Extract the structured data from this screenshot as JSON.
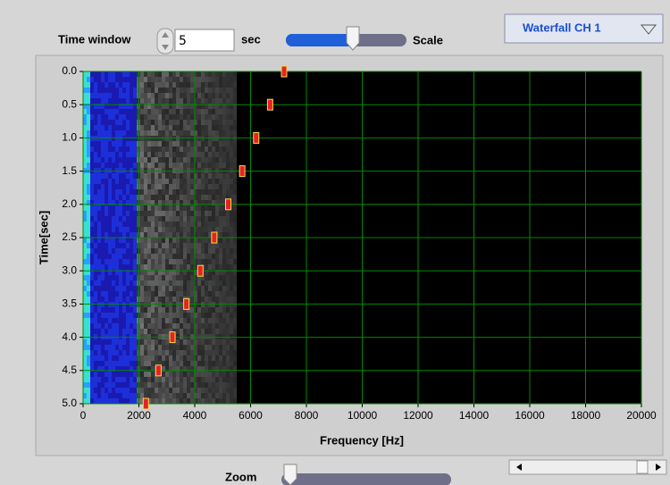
{
  "controls": {
    "time_window_label": "Time window",
    "time_window_value": "5",
    "time_window_unit": "sec",
    "scale_label": "Scale",
    "view_select": "Waterfall CH 1",
    "zoom_label": "Zoom"
  },
  "chart_data": {
    "type": "waterfall",
    "x_label": "Frequency [Hz]",
    "y_label": "Time[sec]",
    "xlim": [
      0,
      20000
    ],
    "xticks": [
      0,
      2000,
      4000,
      6000,
      8000,
      10000,
      12000,
      14000,
      16000,
      18000,
      20000
    ],
    "ylim": [
      0,
      5
    ],
    "yticks": [
      {
        "value": 0,
        "label": "0.0"
      },
      0.5,
      {
        "value": 1,
        "label": "1.0"
      },
      1.5,
      {
        "value": 2,
        "label": "2.0"
      },
      2.5,
      {
        "value": 3,
        "label": "3.0"
      },
      3.5,
      {
        "value": 4,
        "label": "4.0"
      },
      4.5,
      {
        "value": 5,
        "label": "5.0"
      }
    ],
    "y_inverted": true,
    "grid": true,
    "grid_color": "#008a00",
    "x": [
      7200,
      6700,
      6200,
      5700,
      5200,
      4700,
      4200,
      3700,
      3200,
      2700,
      2250
    ],
    "values": [
      0,
      0.5,
      1,
      1.5,
      2,
      2.5,
      3,
      3.5,
      4,
      4.5,
      5
    ],
    "color": "#e8202a"
  }
}
